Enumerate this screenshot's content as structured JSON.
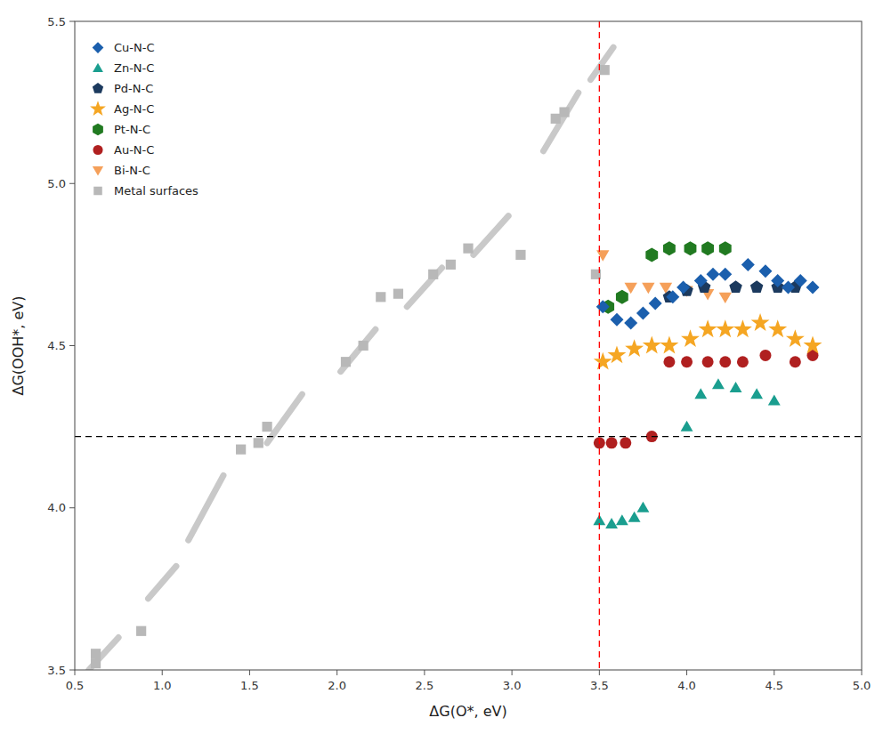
{
  "chart_data": {
    "type": "scatter",
    "xlabel": "ΔG(O*, eV)",
    "ylabel": "ΔG(OOH*, eV)",
    "xlim": [
      0.5,
      5.0
    ],
    "ylim": [
      3.5,
      5.5
    ],
    "xticks": [
      0.5,
      {
        "value": 1.0,
        "label": "1.0"
      },
      1.5,
      {
        "value": 2.0,
        "label": "2.0"
      },
      2.5,
      {
        "value": 3.0,
        "label": "3.0"
      },
      3.5,
      {
        "value": 4.0,
        "label": "4.0"
      },
      4.5,
      {
        "value": 5.0,
        "label": "5.0"
      }
    ],
    "yticks": [
      3.5,
      {
        "value": 4.0,
        "label": "4.0"
      },
      4.5,
      {
        "value": 5.0,
        "label": "5.0"
      },
      5.5
    ],
    "grid": false,
    "legend": "upper left",
    "hline": {
      "y": 4.22,
      "color": "black",
      "line_style": "dashed"
    },
    "vline": {
      "x": 3.5,
      "color": "red",
      "line_style": "dashed"
    },
    "series": [
      {
        "name": "Cu-N-C",
        "color": "#1b5fad",
        "marker": "diamond",
        "x": [
          3.52,
          3.6,
          3.68,
          3.75,
          3.82,
          3.92,
          3.98,
          4.08,
          4.15,
          4.22,
          4.35,
          4.45,
          4.52,
          4.58,
          4.65,
          4.72
        ],
        "values": [
          4.62,
          4.58,
          4.57,
          4.6,
          4.63,
          4.65,
          4.68,
          4.7,
          4.72,
          4.72,
          4.75,
          4.73,
          4.7,
          4.68,
          4.7,
          4.68
        ]
      },
      {
        "name": "Zn-N-C",
        "color": "#1a9e8f",
        "marker": "triangle-up",
        "x": [
          3.5,
          3.57,
          3.63,
          3.7,
          3.75,
          4.0,
          4.08,
          4.18,
          4.28,
          4.4,
          4.5
        ],
        "values": [
          3.96,
          3.95,
          3.96,
          3.97,
          4.0,
          4.25,
          4.35,
          4.38,
          4.37,
          4.35,
          4.33
        ]
      },
      {
        "name": "Pd-N-C",
        "color": "#1c3a5e",
        "marker": "pentagon",
        "x": [
          3.9,
          4.0,
          4.1,
          4.28,
          4.4,
          4.52,
          4.62
        ],
        "values": [
          4.65,
          4.67,
          4.68,
          4.68,
          4.68,
          4.68,
          4.68
        ]
      },
      {
        "name": "Ag-N-C",
        "color": "#f5a623",
        "marker": "star",
        "x": [
          3.52,
          3.6,
          3.7,
          3.8,
          3.9,
          4.02,
          4.12,
          4.22,
          4.32,
          4.42,
          4.52,
          4.62,
          4.72
        ],
        "values": [
          4.45,
          4.47,
          4.49,
          4.5,
          4.5,
          4.52,
          4.55,
          4.55,
          4.55,
          4.57,
          4.55,
          4.52,
          4.5
        ]
      },
      {
        "name": "Pt-N-C",
        "color": "#217a21",
        "marker": "hexagon",
        "x": [
          3.55,
          3.63,
          3.8,
          3.9,
          4.02,
          4.12,
          4.22
        ],
        "values": [
          4.62,
          4.65,
          4.78,
          4.8,
          4.8,
          4.8,
          4.8
        ]
      },
      {
        "name": "Au-N-C",
        "color": "#b02020",
        "marker": "circle",
        "x": [
          3.5,
          3.57,
          3.65,
          3.8,
          3.9,
          4.0,
          4.12,
          4.22,
          4.32,
          4.45,
          4.62,
          4.72
        ],
        "values": [
          4.2,
          4.2,
          4.2,
          4.22,
          4.45,
          4.45,
          4.45,
          4.45,
          4.45,
          4.47,
          4.45,
          4.47
        ]
      },
      {
        "name": "Bi-N-C",
        "color": "#f5a05a",
        "marker": "triangle-down",
        "x": [
          3.52,
          3.68,
          3.78,
          3.88,
          4.0,
          4.12,
          4.22
        ],
        "values": [
          4.78,
          4.68,
          4.68,
          4.68,
          4.67,
          4.66,
          4.65
        ]
      },
      {
        "name": "Metal surfaces",
        "color": "#b8b8b8",
        "marker": "square",
        "x": [
          0.62,
          0.62,
          0.88,
          1.45,
          1.55,
          1.6,
          2.05,
          2.15,
          2.25,
          2.35,
          2.55,
          2.65,
          2.75,
          3.05,
          3.25,
          3.3,
          3.48,
          3.53
        ],
        "values": [
          3.52,
          3.55,
          3.62,
          4.18,
          4.2,
          4.25,
          4.45,
          4.5,
          4.65,
          4.66,
          4.72,
          4.75,
          4.8,
          4.78,
          5.2,
          5.22,
          4.72,
          5.35
        ]
      },
      {
        "type": "line",
        "color": "#c0c0c0",
        "x": [
          0.58,
          0.75,
          null,
          0.92,
          1.08,
          null,
          1.15,
          1.35,
          null,
          1.6,
          1.8,
          null,
          2.02,
          2.22,
          null,
          2.4,
          2.6,
          null,
          2.78,
          2.98,
          null,
          3.18,
          3.38,
          null,
          3.45,
          3.58
        ],
        "values": [
          3.5,
          3.6,
          null,
          3.72,
          3.82,
          null,
          3.9,
          4.1,
          null,
          4.2,
          4.35,
          null,
          4.42,
          4.55,
          null,
          4.62,
          4.74,
          null,
          4.78,
          4.9,
          null,
          5.1,
          5.28,
          null,
          5.32,
          5.42
        ]
      }
    ]
  }
}
